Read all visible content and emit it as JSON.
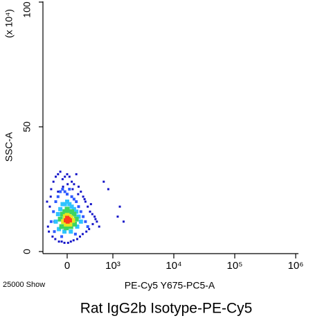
{
  "chart_data": {
    "type": "scatter",
    "title": "Rat IgG2b Isotype-PE-Cy5",
    "xlabel": "PE-Cy5 Y675-PC5-A",
    "ylabel": "SSC-A",
    "yunit": "(x 10⁴)",
    "note": "25000 Show",
    "xscale": "biexponential",
    "xlim": [
      -530,
      1000000
    ],
    "xticks": [
      0,
      {
        "value": 1000,
        "label": "10³"
      },
      {
        "value": 10000,
        "label": "10⁴"
      },
      {
        "value": 100000,
        "label": "10⁵"
      },
      {
        "value": 1000000,
        "label": "10⁶"
      }
    ],
    "ylim": [
      0,
      100
    ],
    "yticks": [
      0,
      50,
      100
    ],
    "series": [
      {
        "color": "#1414c8",
        "x": [
          -420,
          -380,
          -350,
          -300,
          -250,
          -200,
          -150,
          -100,
          -50,
          0,
          50,
          100,
          150,
          200,
          250,
          300,
          350,
          400,
          450,
          500,
          550,
          600,
          650,
          700,
          -400,
          -320,
          -260,
          -180,
          -120,
          -60,
          20,
          80,
          140,
          220,
          280,
          340,
          420,
          480,
          560,
          620,
          -440,
          -360,
          -280,
          -200,
          -90,
          10,
          120,
          240,
          380,
          520,
          900,
          1200,
          1500,
          1300,
          800
        ],
        "values": [
          10,
          18,
          25,
          28,
          30,
          31,
          32,
          29,
          30,
          31,
          30,
          28,
          27,
          31,
          26,
          24,
          22,
          20,
          18,
          16,
          15,
          14,
          12,
          10,
          8,
          6,
          5,
          4,
          4,
          3.5,
          3.5,
          4,
          4.5,
          5,
          6,
          7,
          8,
          9,
          11,
          13,
          20,
          22,
          12,
          24,
          26,
          27,
          25,
          23,
          21,
          19,
          25,
          14,
          12,
          18,
          28
        ]
      },
      {
        "color": "#2f5bff",
        "x": [
          -350,
          -300,
          -250,
          -200,
          -150,
          -100,
          -50,
          0,
          50,
          100,
          150,
          200,
          250,
          300,
          350,
          400,
          450,
          -280,
          -120,
          180
        ],
        "values": [
          12,
          16,
          20,
          22,
          24,
          25,
          24,
          23,
          25,
          22,
          21,
          20,
          18,
          16,
          14,
          12,
          10,
          8,
          6,
          7
        ]
      },
      {
        "color": "#2fc3ff",
        "x": [
          -250,
          -200,
          -150,
          -100,
          -50,
          0,
          50,
          100,
          150,
          200,
          250,
          300,
          -180,
          -60,
          80,
          220
        ],
        "values": [
          12,
          15,
          17,
          19,
          19,
          20,
          19,
          18,
          17,
          16,
          14,
          12,
          9,
          8,
          8,
          10
        ]
      },
      {
        "color": "#3ed460",
        "x": [
          -150,
          -100,
          -50,
          0,
          50,
          100,
          150,
          200,
          -120,
          -20,
          80,
          160
        ],
        "values": [
          13,
          15,
          16,
          17,
          16,
          16,
          15,
          13,
          10,
          9.5,
          10,
          11
        ]
      },
      {
        "color": "#e6e61e",
        "x": [
          -80,
          -40,
          0,
          40,
          80,
          120,
          -20,
          60
        ],
        "values": [
          12,
          14,
          14.5,
          14,
          13.5,
          12.5,
          11,
          11
        ]
      },
      {
        "color": "#ff3c1e",
        "x": [
          -30,
          0,
          30,
          60,
          10
        ],
        "values": [
          12.5,
          13.5,
          13,
          12.5,
          12
        ]
      }
    ]
  }
}
